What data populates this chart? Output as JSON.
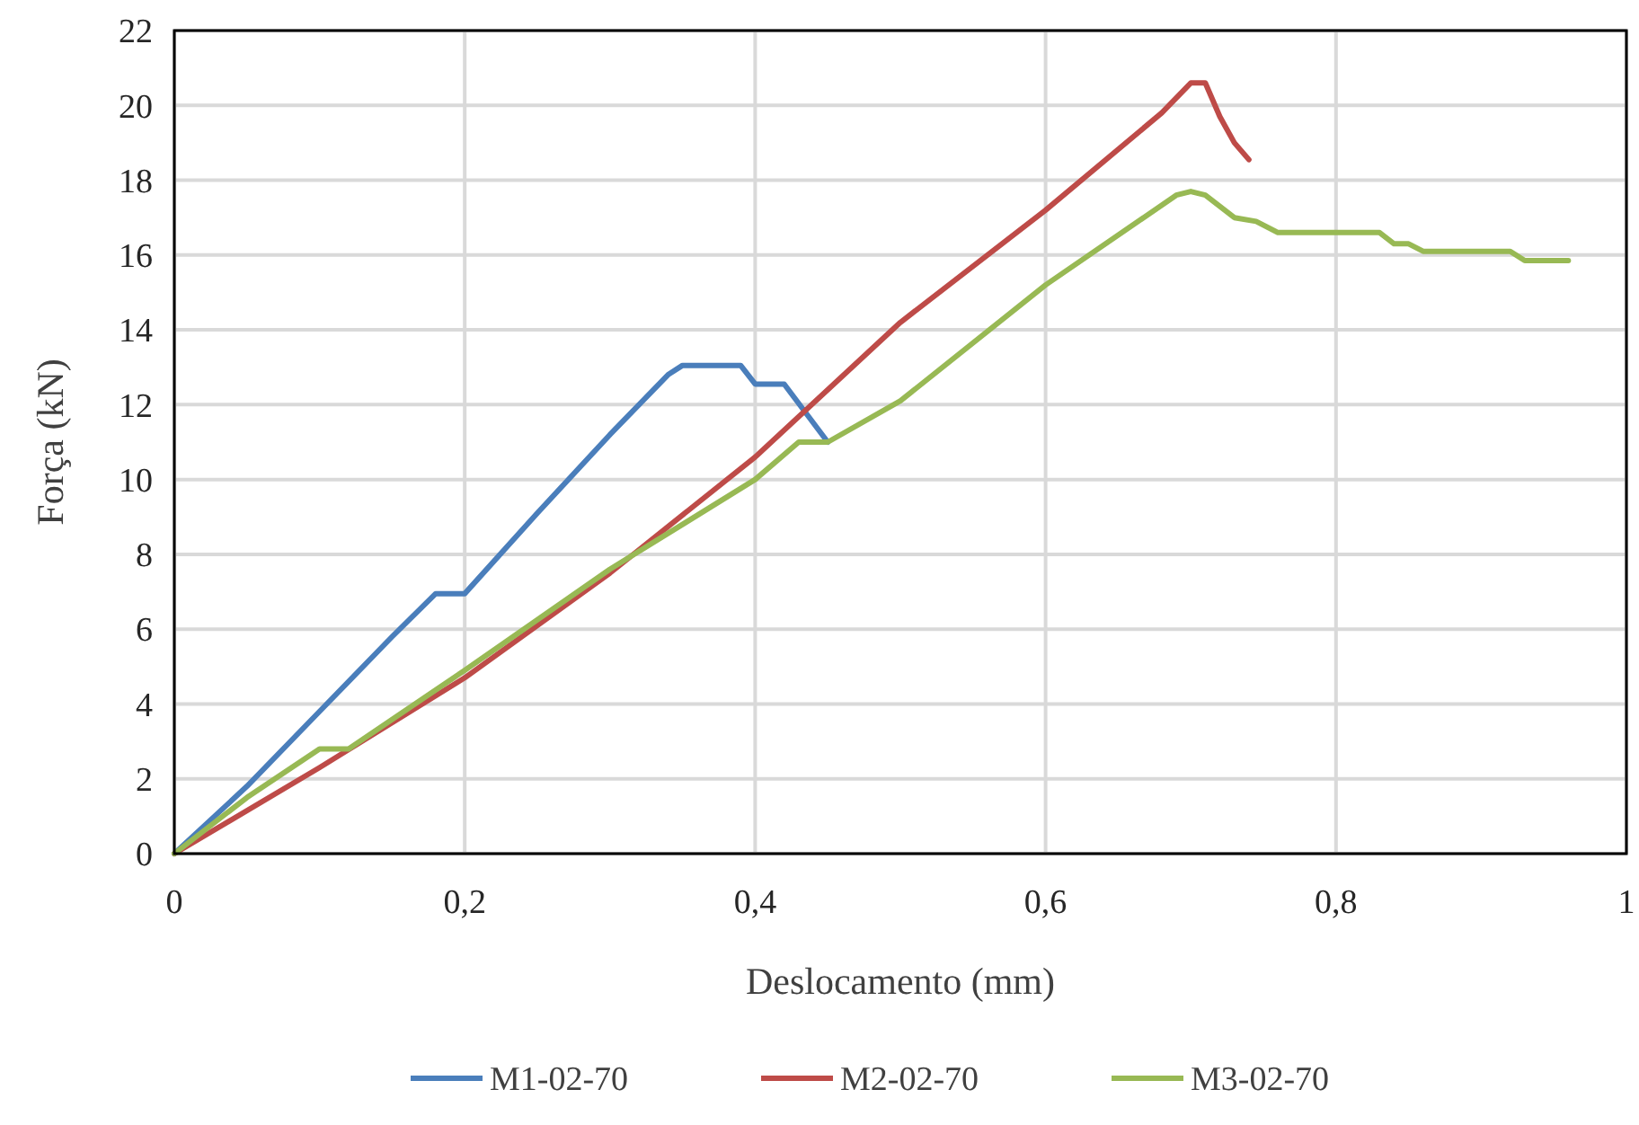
{
  "chart_data": {
    "type": "line",
    "xlabel": "Deslocamento (mm)",
    "ylabel": "Força (kN)",
    "xlim": [
      0,
      1
    ],
    "ylim": [
      0,
      22
    ],
    "xticks": [
      0,
      {
        "value": 0.2,
        "label": "0,2"
      },
      {
        "value": 0.4,
        "label": "0,4"
      },
      {
        "value": 0.6,
        "label": "0,6"
      },
      {
        "value": 0.8,
        "label": "0,8"
      },
      1
    ],
    "yticks": [
      0,
      2,
      4,
      6,
      8,
      10,
      12,
      14,
      16,
      18,
      20,
      22
    ],
    "grid": true,
    "legend": "bottom",
    "marker": "none",
    "line_style": "solid",
    "series": [
      {
        "name": "M1-02-70",
        "color": "#4a7ebb",
        "x": [
          0,
          0.05,
          0.1,
          0.15,
          0.18,
          0.2,
          0.25,
          0.3,
          0.34,
          0.35,
          0.39,
          0.4,
          0.42,
          0.45
        ],
        "values": [
          0,
          1.8,
          3.8,
          5.8,
          6.95,
          6.95,
          9.1,
          11.2,
          12.8,
          13.05,
          13.05,
          12.55,
          12.55,
          11.0
        ]
      },
      {
        "name": "M2-02-70",
        "color": "#be4b48",
        "x": [
          0,
          0.1,
          0.2,
          0.3,
          0.4,
          0.5,
          0.6,
          0.68,
          0.7,
          0.71,
          0.72,
          0.73,
          0.74
        ],
        "values": [
          0,
          2.3,
          4.7,
          7.5,
          10.6,
          14.2,
          17.2,
          19.8,
          20.6,
          20.6,
          19.7,
          19.0,
          18.55
        ]
      },
      {
        "name": "M3-02-70",
        "color": "#98b954",
        "x": [
          0,
          0.05,
          0.1,
          0.12,
          0.2,
          0.3,
          0.4,
          0.43,
          0.45,
          0.5,
          0.6,
          0.69,
          0.7,
          0.71,
          0.73,
          0.745,
          0.76,
          0.82,
          0.83,
          0.84,
          0.85,
          0.86,
          0.92,
          0.93,
          0.96
        ],
        "values": [
          0,
          1.5,
          2.8,
          2.8,
          4.9,
          7.6,
          10.0,
          11.0,
          11.0,
          12.1,
          15.2,
          17.6,
          17.7,
          17.6,
          17.0,
          16.9,
          16.6,
          16.6,
          16.6,
          16.3,
          16.3,
          16.1,
          16.1,
          15.85,
          15.85
        ]
      }
    ]
  }
}
